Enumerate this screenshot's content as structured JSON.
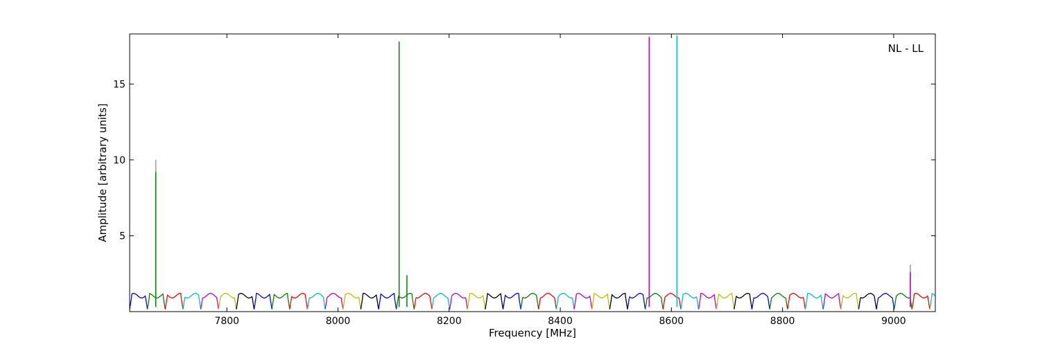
{
  "chart_data": {
    "type": "line",
    "annotation": "NL - LL",
    "xlabel": "Frequency [MHz]",
    "ylabel": "Amplitude [arbitrary units]",
    "xlim": [
      7625,
      9075
    ],
    "ylim": [
      0,
      18.3
    ],
    "xticks": [
      7800,
      8000,
      8200,
      8400,
      8600,
      8800,
      9000
    ],
    "yticks": [
      5,
      10,
      15
    ],
    "grid": false,
    "legend": "none",
    "band_width_mhz": 32,
    "band_colors": [
      "#0000ff",
      "#008000",
      "#ff0000",
      "#00bfbf",
      "#bf00bf",
      "#bfbf00",
      "#000000"
    ],
    "band_start_mhz": 7625,
    "series": [
      {
        "color": "#999999",
        "points": [
          [
            7672,
            10.0
          ],
          [
            9030,
            3.1
          ]
        ]
      },
      {
        "color": "#008000",
        "points": [
          [
            7672,
            9.2
          ],
          [
            8110,
            17.8
          ],
          [
            8124,
            2.4
          ]
        ]
      },
      {
        "color": "#bf00bf",
        "points": [
          [
            8560,
            18.1
          ],
          [
            9030,
            2.6
          ]
        ]
      },
      {
        "color": "#00bfbf",
        "points": [
          [
            8610,
            18.2
          ]
        ]
      }
    ]
  }
}
